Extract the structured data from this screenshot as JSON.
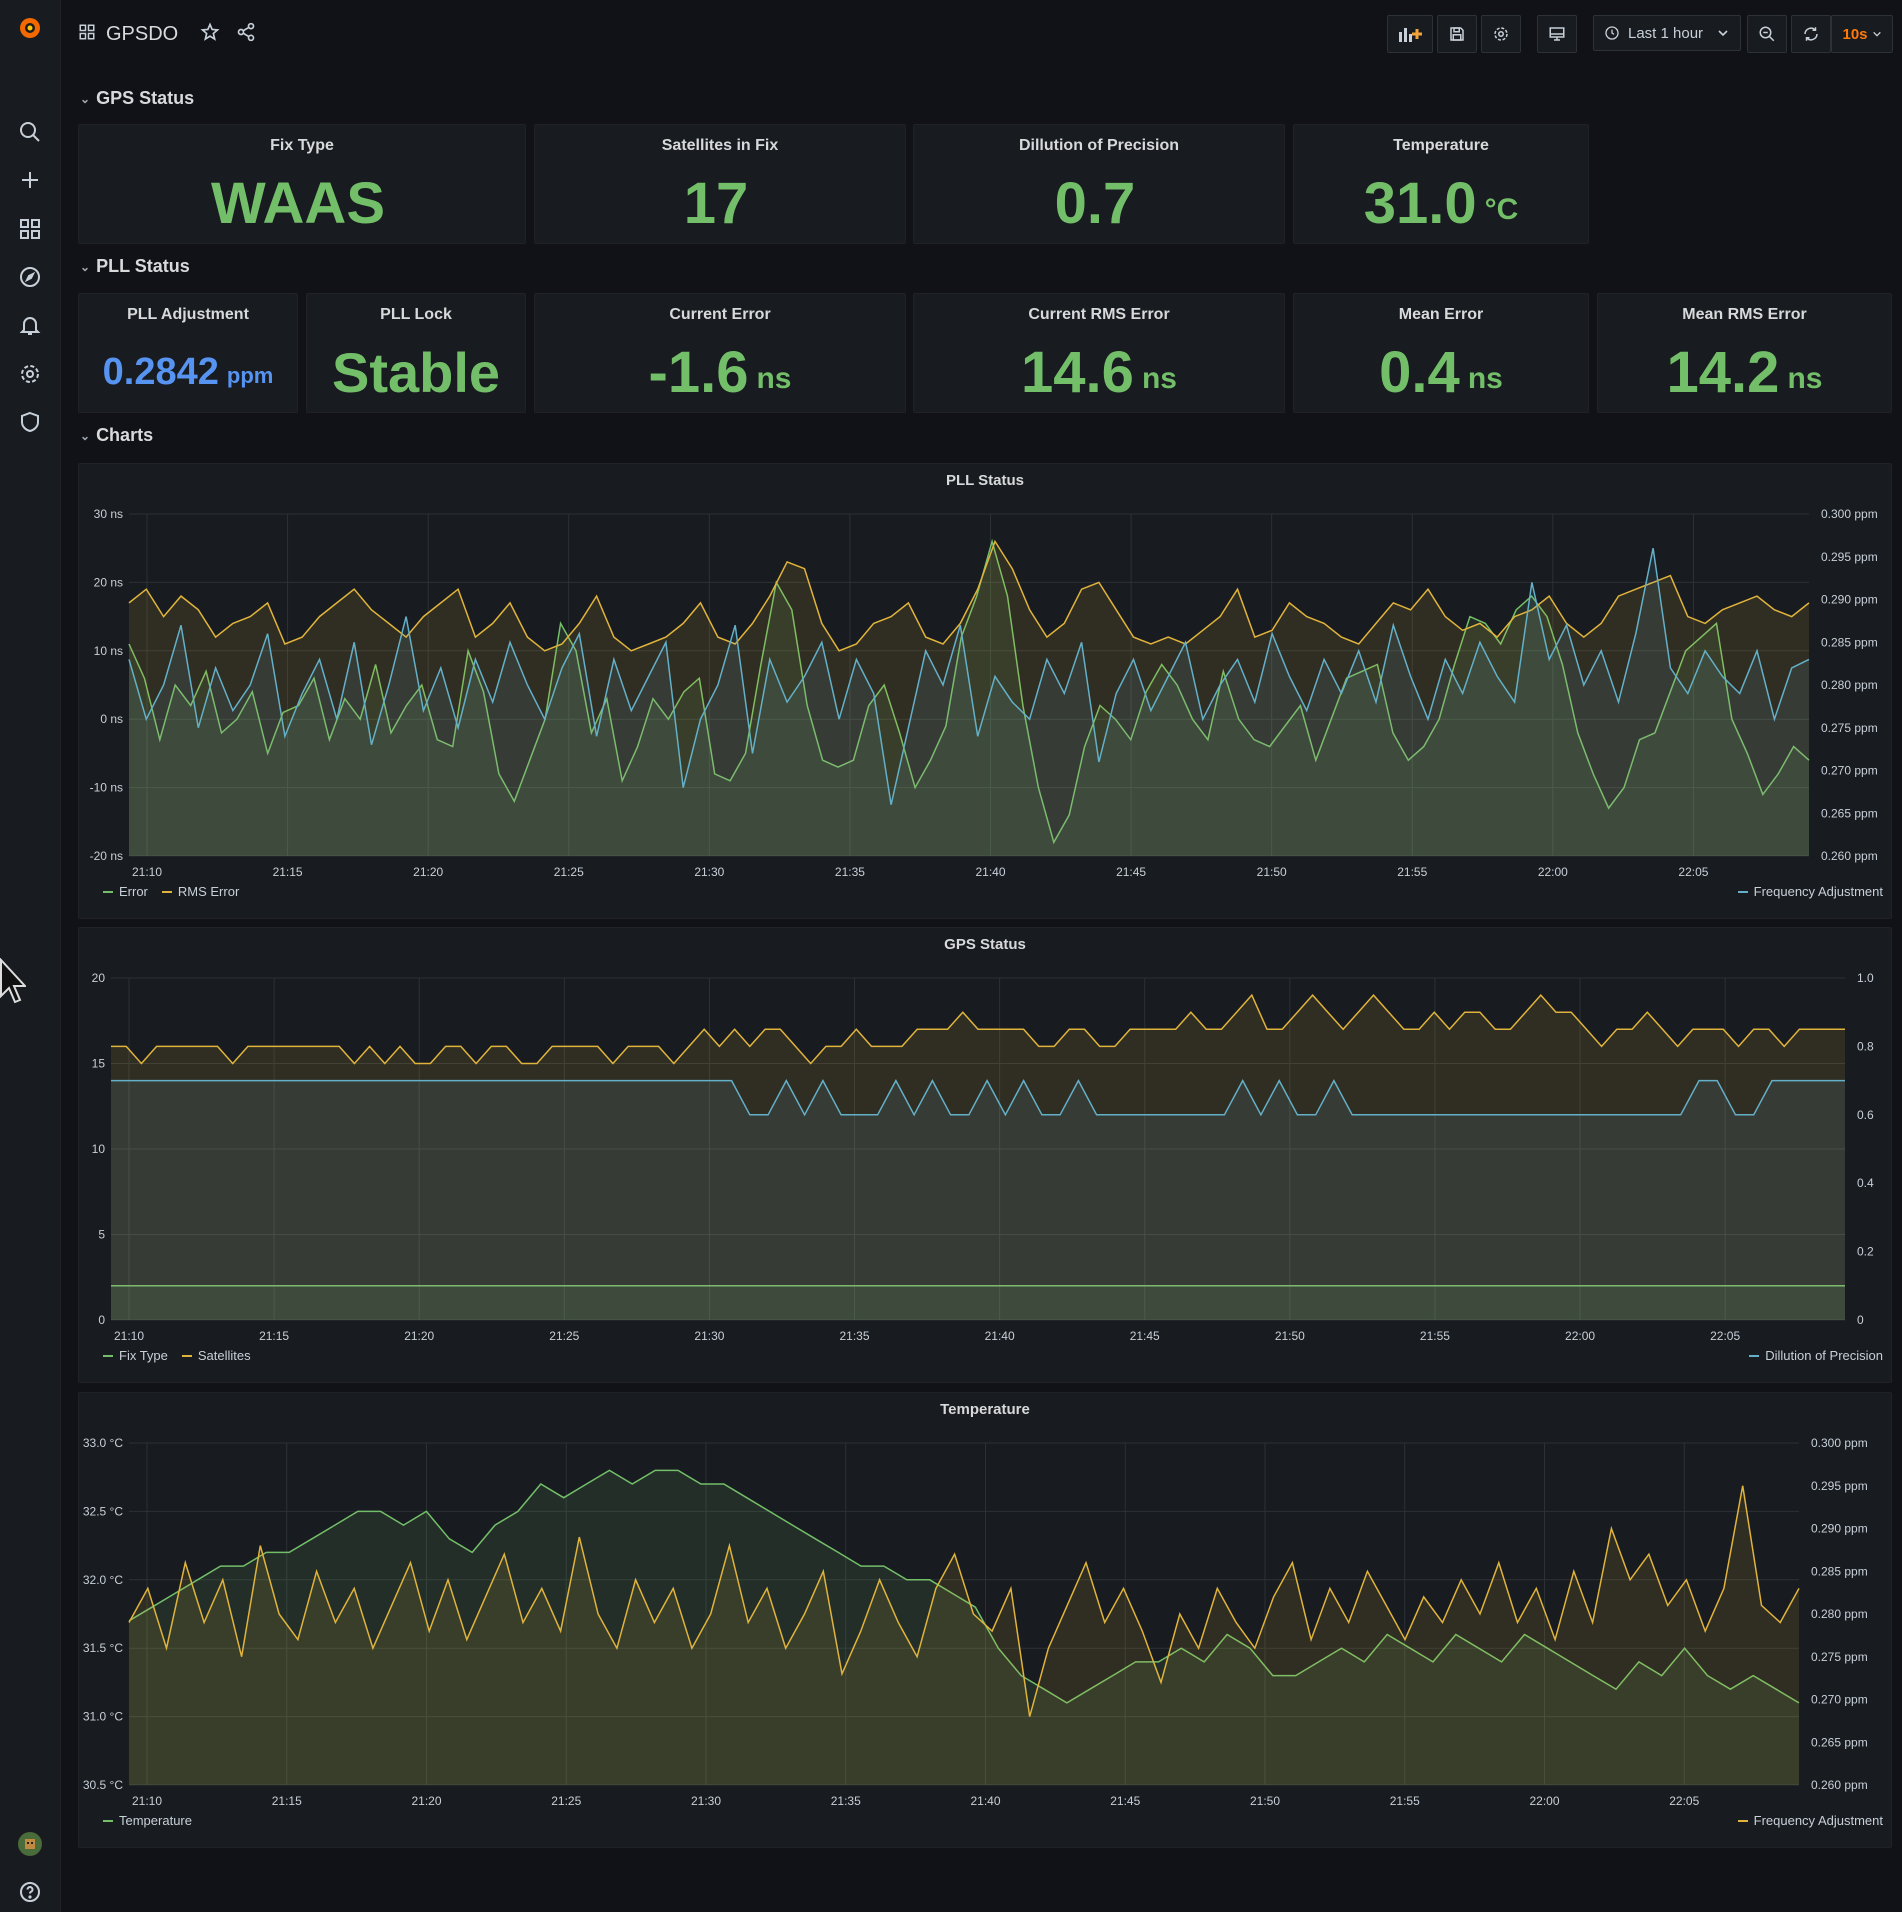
{
  "header": {
    "title": "GPSDO",
    "time_range": "Last 1 hour",
    "refresh": "10s"
  },
  "icons": {
    "sidebar": [
      "grafana-logo-icon",
      "search-icon",
      "plus-icon",
      "dashboards-icon",
      "explore-icon",
      "alert-bell-icon",
      "gear-icon",
      "shield-icon",
      "avatar",
      "help-icon"
    ],
    "toolbar": [
      "add-panel-icon",
      "save-icon",
      "settings-icon",
      "tv-mode-icon",
      "clock-icon",
      "zoom-out-icon",
      "refresh-icon"
    ]
  },
  "colors": {
    "green": "#73bf69",
    "blue": "#5794f2",
    "orange": "#e0b43c",
    "cyan": "#64b0c8",
    "accent": "#ff780a"
  },
  "rows": {
    "gps": "GPS Status",
    "pll": "PLL Status",
    "charts": "Charts"
  },
  "gps_stats": [
    {
      "title": "Fix Type",
      "value": "WAAS",
      "unit": "",
      "color": "#73bf69"
    },
    {
      "title": "Satellites in Fix",
      "value": "17",
      "unit": "",
      "color": "#73bf69"
    },
    {
      "title": "Dillution of Precision",
      "value": "0.7",
      "unit": "",
      "color": "#73bf69"
    },
    {
      "title": "Temperature",
      "value": "31.0",
      "unit": "°C",
      "color": "#73bf69"
    }
  ],
  "pll_stats": [
    {
      "title": "PLL Adjustment",
      "value": "0.2842",
      "unit": "ppm",
      "color": "#5794f2"
    },
    {
      "title": "PLL Lock",
      "value": "Stable",
      "unit": "",
      "color": "#73bf69"
    },
    {
      "title": "Current Error",
      "value": "-1.6",
      "unit": "ns",
      "color": "#73bf69"
    },
    {
      "title": "Current RMS Error",
      "value": "14.6",
      "unit": "ns",
      "color": "#73bf69"
    },
    {
      "title": "Mean Error",
      "value": "0.4",
      "unit": "ns",
      "color": "#73bf69"
    },
    {
      "title": "Mean RMS Error",
      "value": "14.2",
      "unit": "ns",
      "color": "#73bf69"
    }
  ],
  "chart_data": [
    {
      "type": "line",
      "title": "PLL Status",
      "x_ticks": [
        "21:10",
        "21:15",
        "21:20",
        "21:25",
        "21:30",
        "21:35",
        "21:40",
        "21:45",
        "21:50",
        "21:55",
        "22:00",
        "22:05"
      ],
      "y_left_ticks": [
        "30 ns",
        "20 ns",
        "10 ns",
        "0 ns",
        "-10 ns",
        "-20 ns"
      ],
      "y_right_ticks": [
        "0.300 ppm",
        "0.295 ppm",
        "0.290 ppm",
        "0.285 ppm",
        "0.280 ppm",
        "0.275 ppm",
        "0.270 ppm",
        "0.265 ppm",
        "0.260 ppm"
      ],
      "ylim_left": [
        -20,
        30
      ],
      "ylim_right": [
        0.26,
        0.3
      ],
      "legend_left": [
        "Error",
        "RMS Error"
      ],
      "legend_right": [
        "Frequency Adjustment"
      ],
      "series": [
        {
          "name": "Error",
          "axis": "left",
          "color": "#73bf69",
          "values": [
            11,
            6,
            -3,
            5,
            2,
            7,
            -2,
            0,
            4,
            -5,
            1,
            2,
            6,
            -3,
            3,
            0,
            8,
            -2,
            2,
            5,
            -3,
            -4,
            10,
            4,
            -8,
            -12,
            -6,
            0,
            14,
            10,
            -2,
            3,
            -9,
            -4,
            3,
            0,
            4,
            6,
            -8,
            -9,
            -5,
            8,
            20,
            16,
            2,
            -6,
            -7,
            -6,
            2,
            5,
            -2,
            -10,
            -6,
            -1,
            12,
            18,
            26,
            18,
            2,
            -10,
            -18,
            -14,
            -4,
            2,
            0,
            -3,
            4,
            8,
            5,
            0,
            -3,
            7,
            0,
            -3,
            -4,
            -1,
            2,
            -6,
            0,
            6,
            7,
            8,
            -2,
            -6,
            -4,
            0,
            8,
            15,
            14,
            11,
            16,
            18,
            15,
            8,
            -2,
            -8,
            -13,
            -10,
            -3,
            -2,
            4,
            10,
            12,
            14,
            0,
            -5,
            -11,
            -8,
            -4,
            -6
          ]
        },
        {
          "name": "RMS Error",
          "axis": "left",
          "color": "#e0b43c",
          "values": [
            17,
            19,
            15,
            18,
            16,
            12,
            14,
            15,
            17,
            11,
            12,
            15,
            17,
            19,
            16,
            14,
            12,
            15,
            17,
            19,
            12,
            14,
            17,
            12,
            10,
            11,
            14,
            18,
            12,
            10,
            11,
            12,
            14,
            17,
            12,
            11,
            14,
            18,
            23,
            22,
            14,
            10,
            11,
            14,
            15,
            17,
            12,
            11,
            14,
            19,
            26,
            22,
            16,
            12,
            14,
            19,
            20,
            16,
            12,
            11,
            12,
            11,
            13,
            15,
            19,
            12,
            13,
            17,
            15,
            14,
            12,
            11,
            14,
            17,
            16,
            19,
            15,
            13,
            14,
            12,
            15,
            16,
            18,
            14,
            12,
            14,
            18,
            19,
            20,
            21,
            15,
            14,
            16,
            17,
            18,
            16,
            15,
            17
          ]
        },
        {
          "name": "Frequency Adjustment",
          "axis": "right",
          "color": "#64b0c8",
          "values": [
            0.283,
            0.276,
            0.28,
            0.287,
            0.275,
            0.282,
            0.277,
            0.28,
            0.286,
            0.274,
            0.279,
            0.283,
            0.276,
            0.285,
            0.273,
            0.28,
            0.288,
            0.277,
            0.282,
            0.275,
            0.283,
            0.278,
            0.285,
            0.28,
            0.276,
            0.282,
            0.286,
            0.274,
            0.283,
            0.277,
            0.281,
            0.285,
            0.268,
            0.276,
            0.28,
            0.287,
            0.272,
            0.283,
            0.278,
            0.281,
            0.285,
            0.276,
            0.283,
            0.279,
            0.266,
            0.275,
            0.284,
            0.28,
            0.287,
            0.274,
            0.281,
            0.278,
            0.276,
            0.283,
            0.279,
            0.285,
            0.271,
            0.279,
            0.283,
            0.277,
            0.281,
            0.285,
            0.276,
            0.28,
            0.283,
            0.278,
            0.286,
            0.281,
            0.277,
            0.283,
            0.279,
            0.284,
            0.278,
            0.287,
            0.281,
            0.276,
            0.283,
            0.279,
            0.285,
            0.281,
            0.278,
            0.292,
            0.283,
            0.287,
            0.28,
            0.284,
            0.278,
            0.286,
            0.296,
            0.282,
            0.279,
            0.284,
            0.281,
            0.279,
            0.284,
            0.276,
            0.282,
            0.283
          ]
        }
      ]
    },
    {
      "type": "line",
      "title": "GPS Status",
      "x_ticks": [
        "21:10",
        "21:15",
        "21:20",
        "21:25",
        "21:30",
        "21:35",
        "21:40",
        "21:45",
        "21:50",
        "21:55",
        "22:00",
        "22:05"
      ],
      "y_left_ticks": [
        "20",
        "15",
        "10",
        "5",
        "0"
      ],
      "y_right_ticks": [
        "1.0",
        "0.8",
        "0.6",
        "0.4",
        "0.2",
        "0"
      ],
      "ylim_left": [
        0,
        20
      ],
      "ylim_right": [
        0,
        1
      ],
      "legend_left": [
        "Fix Type",
        "Satellites"
      ],
      "legend_right": [
        "Dillution of Precision"
      ],
      "series": [
        {
          "name": "Fix Type",
          "axis": "left",
          "color": "#73bf69",
          "values": [
            2,
            2,
            2,
            2,
            2,
            2,
            2,
            2,
            2,
            2,
            2,
            2,
            2,
            2,
            2,
            2,
            2,
            2,
            2,
            2,
            2,
            2,
            2,
            2,
            2,
            2,
            2,
            2,
            2,
            2,
            2,
            2,
            2,
            2,
            2,
            2,
            2,
            2,
            2,
            2,
            2,
            2,
            2,
            2,
            2,
            2,
            2,
            2,
            2,
            2,
            2,
            2,
            2,
            2,
            2,
            2,
            2,
            2,
            2,
            2,
            2,
            2,
            2,
            2,
            2,
            2,
            2,
            2,
            2,
            2,
            2,
            2,
            2,
            2,
            2,
            2,
            2,
            2,
            2,
            2,
            2,
            2,
            2,
            2,
            2,
            2
          ]
        },
        {
          "name": "Satellites",
          "axis": "left",
          "color": "#e0b43c",
          "values": [
            16,
            16,
            15,
            16,
            16,
            16,
            16,
            16,
            15,
            16,
            16,
            16,
            16,
            16,
            16,
            16,
            15,
            16,
            15,
            16,
            15,
            15,
            16,
            16,
            15,
            16,
            16,
            15,
            15,
            16,
            16,
            16,
            16,
            15,
            16,
            16,
            16,
            15,
            16,
            17,
            16,
            17,
            16,
            17,
            17,
            16,
            15,
            16,
            16,
            17,
            16,
            16,
            16,
            17,
            17,
            17,
            18,
            17,
            17,
            17,
            17,
            16,
            16,
            17,
            17,
            16,
            16,
            17,
            17,
            17,
            17,
            18,
            17,
            17,
            18,
            19,
            17,
            17,
            18,
            19,
            18,
            17,
            18,
            19,
            18,
            17,
            17,
            18,
            17,
            18,
            18,
            17,
            17,
            18,
            19,
            18,
            18,
            17,
            16,
            17,
            17,
            18,
            17,
            16,
            17,
            17,
            17,
            16,
            17,
            17,
            16,
            17,
            17,
            17,
            17
          ]
        },
        {
          "name": "Dillution of Precision",
          "axis": "right",
          "color": "#64b0c8",
          "values": [
            0.7,
            0.7,
            0.7,
            0.7,
            0.7,
            0.7,
            0.7,
            0.7,
            0.7,
            0.7,
            0.7,
            0.7,
            0.7,
            0.7,
            0.7,
            0.7,
            0.7,
            0.7,
            0.7,
            0.7,
            0.7,
            0.7,
            0.7,
            0.7,
            0.7,
            0.7,
            0.7,
            0.7,
            0.7,
            0.7,
            0.7,
            0.7,
            0.7,
            0.7,
            0.7,
            0.6,
            0.6,
            0.7,
            0.6,
            0.7,
            0.6,
            0.6,
            0.6,
            0.7,
            0.6,
            0.7,
            0.6,
            0.6,
            0.7,
            0.6,
            0.7,
            0.6,
            0.6,
            0.7,
            0.6,
            0.6,
            0.6,
            0.6,
            0.6,
            0.6,
            0.6,
            0.6,
            0.7,
            0.6,
            0.7,
            0.6,
            0.6,
            0.7,
            0.6,
            0.6,
            0.6,
            0.6,
            0.6,
            0.6,
            0.6,
            0.6,
            0.6,
            0.6,
            0.6,
            0.6,
            0.6,
            0.6,
            0.6,
            0.6,
            0.6,
            0.6,
            0.6,
            0.7,
            0.7,
            0.6,
            0.6,
            0.7,
            0.7,
            0.7,
            0.7,
            0.7
          ]
        }
      ]
    },
    {
      "type": "line",
      "title": "Temperature",
      "x_ticks": [
        "21:10",
        "21:15",
        "21:20",
        "21:25",
        "21:30",
        "21:35",
        "21:40",
        "21:45",
        "21:50",
        "21:55",
        "22:00",
        "22:05"
      ],
      "y_left_ticks": [
        "33.0 °C",
        "32.5 °C",
        "32.0 °C",
        "31.5 °C",
        "31.0 °C",
        "30.5 °C"
      ],
      "y_right_ticks": [
        "0.300 ppm",
        "0.295 ppm",
        "0.290 ppm",
        "0.285 ppm",
        "0.280 ppm",
        "0.275 ppm",
        "0.270 ppm",
        "0.265 ppm",
        "0.260 ppm"
      ],
      "ylim_left": [
        30.5,
        33.0
      ],
      "ylim_right": [
        0.26,
        0.3
      ],
      "legend_left": [
        "Temperature"
      ],
      "legend_right": [
        "Frequency Adjustment"
      ],
      "series": [
        {
          "name": "Temperature",
          "axis": "left",
          "color": "#73bf69",
          "values": [
            31.7,
            31.8,
            31.9,
            32.0,
            32.1,
            32.1,
            32.2,
            32.2,
            32.3,
            32.4,
            32.5,
            32.5,
            32.4,
            32.5,
            32.3,
            32.2,
            32.4,
            32.5,
            32.7,
            32.6,
            32.7,
            32.8,
            32.7,
            32.8,
            32.8,
            32.7,
            32.7,
            32.6,
            32.5,
            32.4,
            32.3,
            32.2,
            32.1,
            32.1,
            32.0,
            32.0,
            31.9,
            31.8,
            31.5,
            31.3,
            31.2,
            31.1,
            31.2,
            31.3,
            31.4,
            31.4,
            31.5,
            31.4,
            31.6,
            31.5,
            31.3,
            31.3,
            31.4,
            31.5,
            31.4,
            31.6,
            31.5,
            31.4,
            31.6,
            31.5,
            31.4,
            31.6,
            31.5,
            31.4,
            31.3,
            31.2,
            31.4,
            31.3,
            31.5,
            31.3,
            31.2,
            31.3,
            31.2,
            31.1
          ]
        },
        {
          "name": "Frequency Adjustment",
          "axis": "right",
          "color": "#e0b43c",
          "values": [
            0.279,
            0.283,
            0.276,
            0.286,
            0.279,
            0.284,
            0.275,
            0.288,
            0.28,
            0.277,
            0.285,
            0.279,
            0.283,
            0.276,
            0.281,
            0.286,
            0.278,
            0.284,
            0.277,
            0.282,
            0.287,
            0.279,
            0.283,
            0.278,
            0.289,
            0.28,
            0.276,
            0.284,
            0.279,
            0.283,
            0.276,
            0.28,
            0.288,
            0.279,
            0.283,
            0.276,
            0.28,
            0.285,
            0.273,
            0.278,
            0.284,
            0.279,
            0.275,
            0.283,
            0.287,
            0.28,
            0.278,
            0.283,
            0.268,
            0.276,
            0.281,
            0.286,
            0.279,
            0.283,
            0.278,
            0.272,
            0.28,
            0.276,
            0.283,
            0.279,
            0.276,
            0.282,
            0.286,
            0.277,
            0.283,
            0.279,
            0.285,
            0.281,
            0.277,
            0.282,
            0.279,
            0.284,
            0.28,
            0.286,
            0.279,
            0.283,
            0.277,
            0.285,
            0.279,
            0.29,
            0.284,
            0.287,
            0.281,
            0.284,
            0.278,
            0.283,
            0.295,
            0.281,
            0.279,
            0.283
          ]
        }
      ]
    }
  ]
}
